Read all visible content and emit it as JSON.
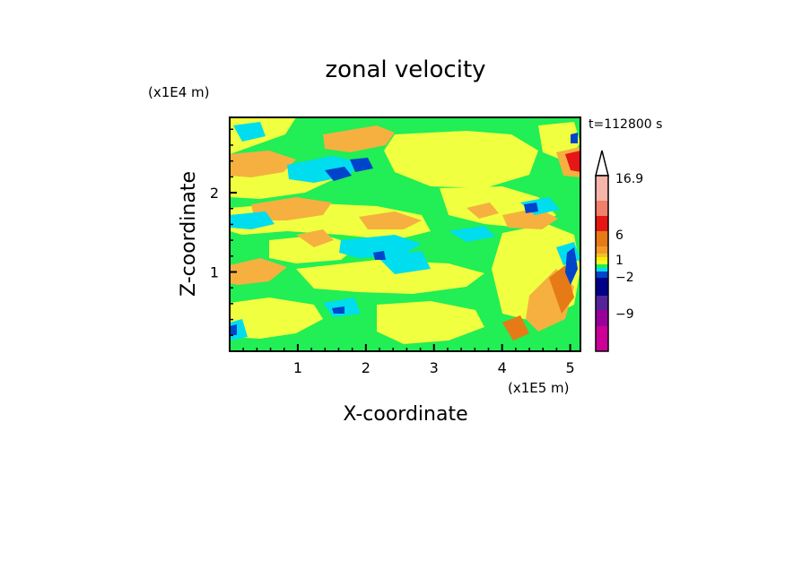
{
  "chart_data": {
    "type": "heatmap",
    "title": "zonal velocity",
    "xlabel": "X-coordinate",
    "ylabel": "Z-coordinate",
    "x_scale_label": "(x1E5 m)",
    "y_scale_label": "(x1E4 m)",
    "time_label": "t=112800 s",
    "xlim": [
      0,
      5.15
    ],
    "ylim": [
      0,
      2.95
    ],
    "x_ticks": [
      "1",
      "2",
      "3",
      "4",
      "5"
    ],
    "y_ticks": [
      "1",
      "2"
    ],
    "colorbar": {
      "labels": [
        "16.9",
        "6",
        "1",
        "−2",
        "−9"
      ],
      "colors": [
        "#f5b5a8",
        "#f07f6c",
        "#e61616",
        "#e67a16",
        "#f59a2a",
        "#f2c22a",
        "#ffee00",
        "#f0ff30",
        "#22ee55",
        "#00ddee",
        "#0044cc",
        "#000088",
        "#552299",
        "#990099",
        "#cc0099",
        "#ee22bb"
      ],
      "extend": "max"
    },
    "field_palette": {
      "green": "#22ee55",
      "yellow": "#ffff00",
      "lightyellow": "#f0ff40",
      "orange": "#f5b040",
      "darkorange": "#e67a16",
      "cyan": "#00ddee",
      "blue": "#0044cc",
      "red": "#e61616"
    }
  }
}
